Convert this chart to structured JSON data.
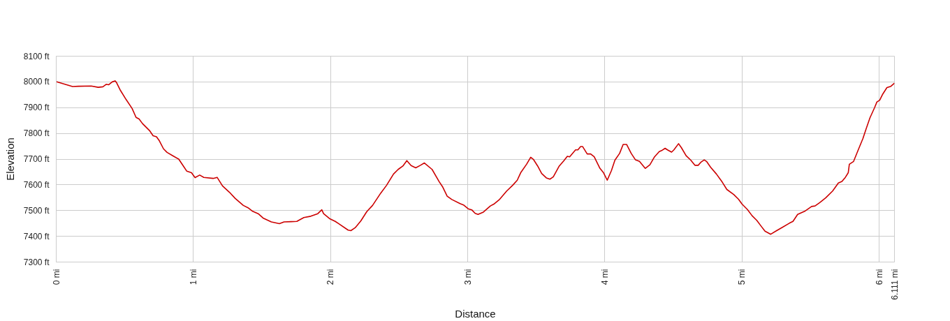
{
  "chart_data": {
    "type": "line",
    "xlabel": "Distance",
    "ylabel": "Elevation",
    "xlim": [
      0,
      6.111
    ],
    "ylim": [
      7300,
      8100
    ],
    "xticks": [
      {
        "value": 0,
        "label": "0 mi"
      },
      {
        "value": 1,
        "label": "1 mi"
      },
      {
        "value": 2,
        "label": "2 mi"
      },
      {
        "value": 3,
        "label": "3 mi"
      },
      {
        "value": 4,
        "label": "4 mi"
      },
      {
        "value": 5,
        "label": "5 mi"
      },
      {
        "value": 6,
        "label": "6 mi"
      },
      {
        "value": 6.111,
        "label": "6.111 mi"
      }
    ],
    "yticks": [
      {
        "value": 7300,
        "label": "7300 ft"
      },
      {
        "value": 7400,
        "label": "7400 ft"
      },
      {
        "value": 7500,
        "label": "7500 ft"
      },
      {
        "value": 7600,
        "label": "7600 ft"
      },
      {
        "value": 7700,
        "label": "7700 ft"
      },
      {
        "value": 7800,
        "label": "7800 ft"
      },
      {
        "value": 7900,
        "label": "7900 ft"
      },
      {
        "value": 8000,
        "label": "8000 ft"
      },
      {
        "value": 8100,
        "label": "8100 ft"
      }
    ],
    "grid": true,
    "x": [
      0.0,
      0.051,
      0.119,
      0.162,
      0.255,
      0.306,
      0.34,
      0.366,
      0.383,
      0.408,
      0.429,
      0.439,
      0.468,
      0.51,
      0.553,
      0.582,
      0.604,
      0.629,
      0.68,
      0.706,
      0.731,
      0.752,
      0.782,
      0.808,
      0.85,
      0.893,
      0.927,
      0.952,
      0.986,
      1.012,
      1.046,
      1.076,
      1.144,
      1.173,
      1.212,
      1.263,
      1.305,
      1.364,
      1.398,
      1.432,
      1.475,
      1.508,
      1.568,
      1.627,
      1.661,
      1.712,
      1.754,
      1.805,
      1.856,
      1.907,
      1.936,
      1.949,
      1.992,
      2.034,
      2.06,
      2.128,
      2.148,
      2.179,
      2.221,
      2.264,
      2.306,
      2.366,
      2.408,
      2.459,
      2.493,
      2.527,
      2.556,
      2.587,
      2.621,
      2.655,
      2.684,
      2.74,
      2.791,
      2.816,
      2.85,
      2.884,
      2.944,
      2.969,
      3.003,
      3.029,
      3.054,
      3.075,
      3.114,
      3.165,
      3.19,
      3.233,
      3.284,
      3.327,
      3.361,
      3.386,
      3.429,
      3.459,
      3.48,
      3.51,
      3.539,
      3.573,
      3.599,
      3.624,
      3.667,
      3.701,
      3.726,
      3.743,
      3.786,
      3.803,
      3.823,
      3.837,
      3.871,
      3.896,
      3.922,
      3.964,
      3.99,
      4.017,
      4.048,
      4.073,
      4.107,
      4.133,
      4.158,
      4.192,
      4.223,
      4.252,
      4.294,
      4.328,
      4.362,
      4.396,
      4.413,
      4.439,
      4.456,
      4.486,
      4.503,
      4.537,
      4.558,
      4.592,
      4.626,
      4.656,
      4.68,
      4.702,
      4.724,
      4.741,
      4.77,
      4.813,
      4.855,
      4.889,
      4.94,
      4.974,
      5.0,
      5.039,
      5.073,
      5.107,
      5.141,
      5.167,
      5.209,
      5.252,
      5.294,
      5.345,
      5.371,
      5.405,
      5.456,
      5.507,
      5.532,
      5.566,
      5.609,
      5.66,
      5.702,
      5.728,
      5.753,
      5.774,
      5.782,
      5.813,
      5.847,
      5.881,
      5.906,
      5.932,
      5.966,
      5.983,
      6.003,
      6.026,
      6.056,
      6.085,
      6.111
    ],
    "series": [
      {
        "color": "#cc0000",
        "values": [
          8001,
          7993,
          7982,
          7983,
          7984,
          7979,
          7981,
          7991,
          7989,
          8000,
          8004,
          7998,
          7967,
          7931,
          7897,
          7862,
          7856,
          7838,
          7811,
          7791,
          7787,
          7771,
          7740,
          7726,
          7713,
          7700,
          7673,
          7653,
          7647,
          7628,
          7638,
          7629,
          7625,
          7629,
          7596,
          7571,
          7547,
          7520,
          7511,
          7497,
          7487,
          7471,
          7456,
          7449,
          7456,
          7457,
          7458,
          7473,
          7478,
          7488,
          7503,
          7488,
          7469,
          7458,
          7449,
          7424,
          7422,
          7433,
          7460,
          7496,
          7520,
          7568,
          7598,
          7642,
          7660,
          7673,
          7694,
          7675,
          7666,
          7676,
          7685,
          7660,
          7613,
          7593,
          7556,
          7543,
          7527,
          7522,
          7507,
          7503,
          7489,
          7485,
          7494,
          7518,
          7525,
          7544,
          7576,
          7598,
          7618,
          7647,
          7680,
          7707,
          7698,
          7673,
          7644,
          7627,
          7622,
          7631,
          7673,
          7694,
          7711,
          7709,
          7736,
          7736,
          7749,
          7749,
          7720,
          7720,
          7709,
          7664,
          7647,
          7618,
          7656,
          7696,
          7722,
          7757,
          7757,
          7722,
          7697,
          7691,
          7664,
          7678,
          7709,
          7729,
          7733,
          7742,
          7736,
          7727,
          7736,
          7760,
          7744,
          7713,
          7696,
          7676,
          7676,
          7689,
          7697,
          7691,
          7669,
          7642,
          7611,
          7582,
          7562,
          7544,
          7525,
          7504,
          7480,
          7462,
          7438,
          7420,
          7408,
          7422,
          7435,
          7451,
          7458,
          7485,
          7497,
          7516,
          7518,
          7531,
          7549,
          7576,
          7607,
          7613,
          7629,
          7647,
          7680,
          7691,
          7736,
          7780,
          7820,
          7860,
          7900,
          7922,
          7929,
          7953,
          7978,
          7983,
          7995
        ]
      }
    ]
  }
}
